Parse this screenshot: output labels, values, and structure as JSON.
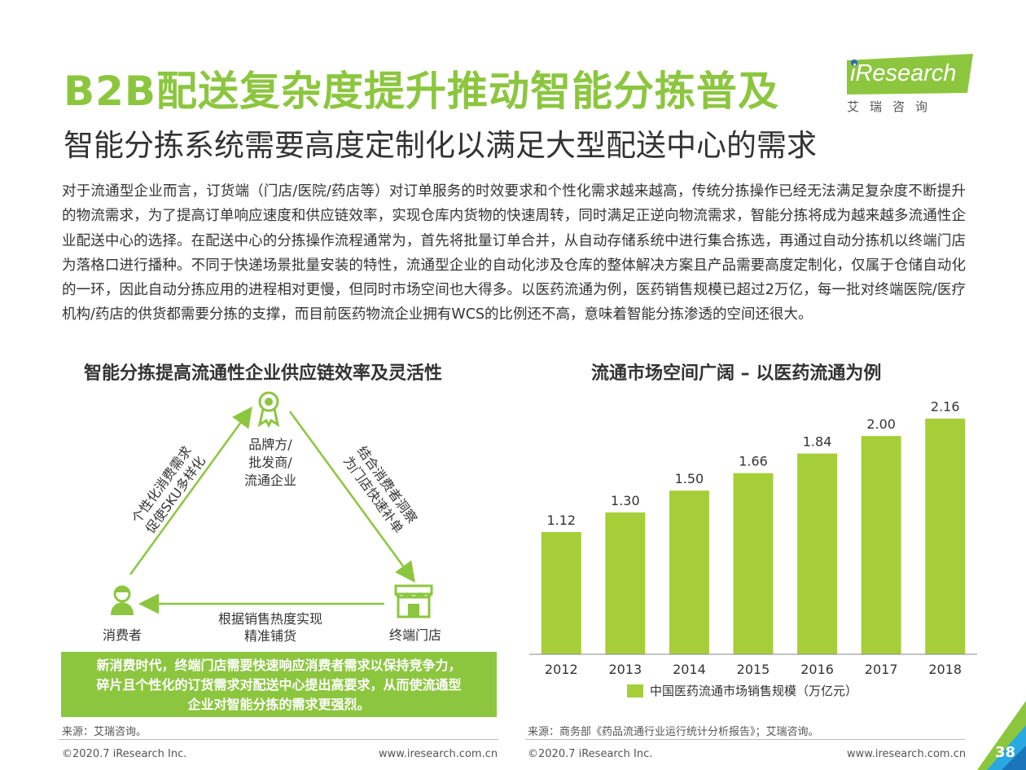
{
  "header": {
    "title": "B2B配送复杂度提升推动智能分拣普及",
    "subtitle": "智能分拣系统需要高度定制化以满足大型配送中心的需求"
  },
  "logo": {
    "brand": "iResearch",
    "cn": "艾瑞咨询",
    "color": "#8cc63f"
  },
  "intro": "对于流通型企业而言，订货端（门店/医院/药店等）对订单服务的时效要求和个性化需求越来越高，传统分拣操作已经无法满足复杂度不断提升的物流需求，为了提高订单响应速度和供应链效率，实现仓库内货物的快速周转，同时满足正逆向物流需求，智能分拣将成为越来越多流通性企业配送中心的选择。在配送中心的分拣操作流程通常为，首先将批量订单合并，从自动存储系统中进行集合拣选，再通过自动分拣机以终端门店为落格口进行播种。不同于快递场景批量安装的特性，流通型企业的自动化涉及仓库的整体解决方案且产品需要高度定制化，仅属于仓储自动化的一环，因此自动分拣应用的进程相对更慢，但同时市场空间也大得多。以医药流通为例，医药销售规模已超过2万亿，每一批对终端医院/医疗机构/药店的供货都需要分拣的支撑，而目前医药物流企业拥有WCS的比例还不高，意味着智能分拣渗透的空间还很大。",
  "left": {
    "title": "智能分拣提高流通性企业供应链效率及灵活性",
    "nodes": {
      "brand": "品牌方/\n批发商/\n流通企业",
      "consumer": "消费者",
      "store": "终端门店"
    },
    "edges": {
      "left": "个性化消费需求\n促使SKU多样化",
      "right": "结合消费者洞察\n为门店快速补单",
      "bottom": "根据销售热度实现\n精准铺货"
    },
    "note": "新消费时代，终端门店需要快速响应消费者需求以保持竞争力，\n碎片且个性化的订货需求对配送中心提出高要求，从而使流通型\n企业对智能分拣的需求更强烈。",
    "source": "来源：艾瑞咨询。",
    "icons": [
      "award-icon",
      "person-icon",
      "store-icon"
    ]
  },
  "right": {
    "title": "流通市场空间广阔 – 以医药流通为例",
    "source": "来源：商务部《药品流通行业运行统计分析报告》；艾瑞咨询。"
  },
  "chart_data": {
    "type": "bar",
    "categories": [
      "2012",
      "2013",
      "2014",
      "2015",
      "2016",
      "2017",
      "2018"
    ],
    "series": [
      {
        "name": "中国医药流通市场销售规模（万亿元）",
        "values": [
          1.12,
          1.3,
          1.5,
          1.66,
          1.84,
          2.0,
          2.16
        ],
        "color": "#a6ce39"
      }
    ],
    "ylim": [
      0,
      2.3
    ],
    "legend": "bottom",
    "grid": false,
    "data_labels": true
  },
  "footer": {
    "copyright": "©2020.7 iResearch Inc.",
    "url": "www.iresearch.com.cn",
    "page": "38"
  }
}
